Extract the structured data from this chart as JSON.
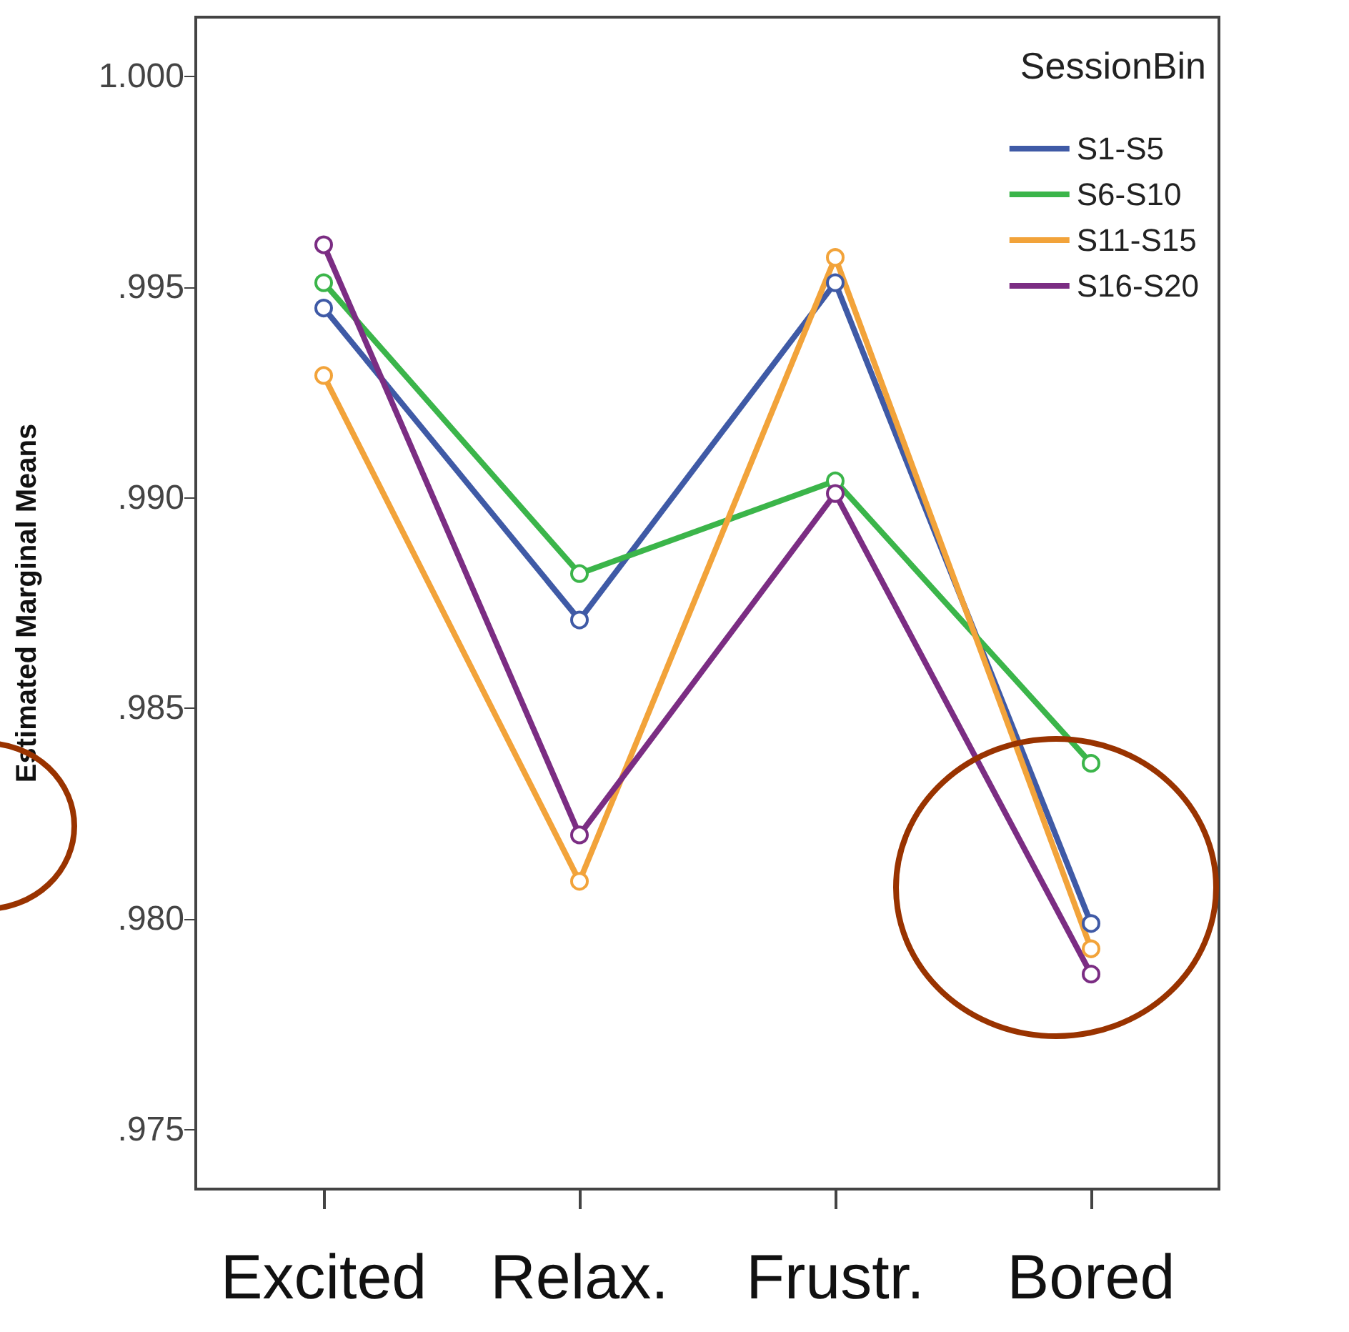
{
  "chart_data": {
    "type": "line",
    "ylabel": "Estimated Marginal Means",
    "legend_title": "SessionBin",
    "categories": [
      "Excited",
      "Relax.",
      "Frustr.",
      "Bored"
    ],
    "series": [
      {
        "name": "S1-S5",
        "color": "#3f5aa6",
        "values": [
          0.9945,
          0.9871,
          0.9951,
          0.9799
        ]
      },
      {
        "name": "S6-S10",
        "color": "#3bb54a",
        "values": [
          0.9951,
          0.9882,
          0.9904,
          0.9837
        ]
      },
      {
        "name": "S11-S15",
        "color": "#f2a33a",
        "values": [
          0.9929,
          0.9809,
          0.9957,
          0.9793
        ]
      },
      {
        "name": "S16-S20",
        "color": "#7b2d83",
        "values": [
          0.996,
          0.982,
          0.9901,
          0.9787
        ]
      }
    ],
    "ylim": [
      0.9736,
      1.0014
    ],
    "yticks": [
      {
        "value": 0.975,
        "label": ".975"
      },
      {
        "value": 0.98,
        "label": ".980"
      },
      {
        "value": 0.985,
        "label": ".985"
      },
      {
        "value": 0.99,
        "label": ".990"
      },
      {
        "value": 0.995,
        "label": ".995"
      },
      {
        "value": 1.0,
        "label": "1.000"
      }
    ],
    "grid": false,
    "legend": "top right",
    "marker": "circle",
    "line_style": "solid"
  }
}
